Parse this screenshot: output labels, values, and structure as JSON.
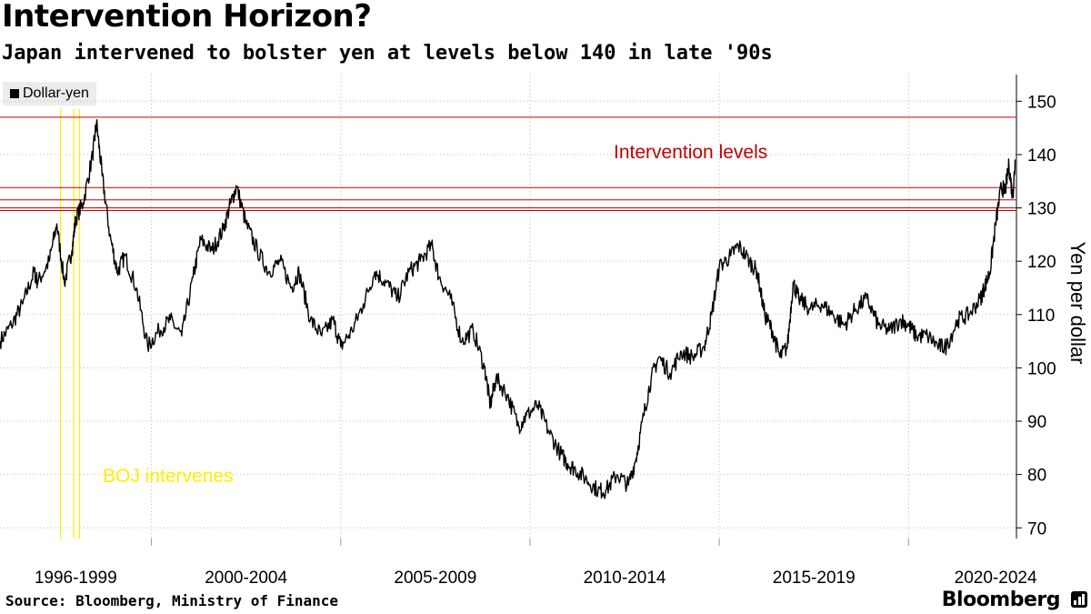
{
  "title": "Intervention Horizon?",
  "subtitle": "Japan intervened to bolster yen at levels below 140 in late '90s",
  "source": "Source: Bloomberg, Ministry of Finance",
  "brand": "Bloomberg",
  "legend": {
    "label": "Dollar-yen",
    "color": "#000000"
  },
  "colors": {
    "series": "#000000",
    "intervention": "#c00000",
    "boj": "#ffee00",
    "grid": "#bdbdbd"
  },
  "chart_data": {
    "type": "line",
    "title": "Intervention Horizon?",
    "ylabel": "Yen per dollar",
    "xlabel": "",
    "ylim": [
      68,
      155
    ],
    "xlim": [
      1996.0,
      2022.85
    ],
    "yticks": [
      70,
      80,
      90,
      100,
      110,
      120,
      130,
      140,
      150
    ],
    "x_group_labels": [
      {
        "label": "1996-1999",
        "center": 1998.0
      },
      {
        "label": "2000-2004",
        "center": 2002.5
      },
      {
        "label": "2005-2009",
        "center": 2007.5
      },
      {
        "label": "2010-2014",
        "center": 2012.5
      },
      {
        "label": "2015-2019",
        "center": 2017.5
      },
      {
        "label": "2020-2024",
        "center": 2022.5
      }
    ],
    "group_dividers": [
      2000.0,
      2005.0,
      2010.0,
      2015.0,
      2020.0
    ],
    "intervention_levels": [
      147.0,
      133.8,
      131.5,
      130.0,
      129.5
    ],
    "intervention_label": "Intervention levels",
    "boj_interventions": [
      1997.6,
      1997.95,
      1998.1
    ],
    "boj_label": "BOJ intervenes",
    "series": [
      {
        "name": "Dollar-yen",
        "x": [
          1996.0,
          1996.3,
          1996.6,
          1996.9,
          1997.0,
          1997.3,
          1997.5,
          1997.7,
          1997.9,
          1998.0,
          1998.2,
          1998.45,
          1998.55,
          1998.7,
          1998.9,
          1999.1,
          1999.3,
          1999.6,
          1999.9,
          2000.2,
          2000.5,
          2000.8,
          2001.1,
          2001.3,
          2001.6,
          2001.9,
          2002.1,
          2002.25,
          2002.5,
          2002.8,
          2003.1,
          2003.4,
          2003.7,
          2003.9,
          2004.2,
          2004.5,
          2004.8,
          2005.0,
          2005.3,
          2005.6,
          2005.9,
          2006.2,
          2006.5,
          2006.8,
          2007.1,
          2007.4,
          2007.6,
          2007.9,
          2008.2,
          2008.5,
          2008.8,
          2008.95,
          2009.1,
          2009.4,
          2009.7,
          2009.9,
          2010.2,
          2010.5,
          2010.8,
          2011.0,
          2011.2,
          2011.5,
          2011.8,
          2012.0,
          2012.3,
          2012.6,
          2012.8,
          2013.0,
          2013.2,
          2013.4,
          2013.7,
          2014.0,
          2014.3,
          2014.6,
          2014.8,
          2015.0,
          2015.3,
          2015.5,
          2015.8,
          2016.0,
          2016.2,
          2016.4,
          2016.6,
          2016.8,
          2016.95,
          2017.1,
          2017.4,
          2017.7,
          2018.0,
          2018.3,
          2018.6,
          2018.9,
          2019.2,
          2019.5,
          2019.8,
          2020.0,
          2020.2,
          2020.5,
          2020.8,
          2021.0,
          2021.3,
          2021.6,
          2021.9,
          2022.0,
          2022.15,
          2022.3,
          2022.45,
          2022.55,
          2022.65,
          2022.75,
          2022.82
        ],
        "values": [
          105,
          108,
          112,
          118,
          116,
          120,
          127,
          116,
          122,
          128,
          131,
          140,
          146,
          136,
          125,
          118,
          121,
          115,
          104,
          107,
          109,
          106,
          117,
          124,
          122,
          126,
          131,
          134,
          127,
          122,
          118,
          120,
          115,
          118,
          109,
          106,
          109,
          104,
          107,
          112,
          118,
          116,
          113,
          118,
          120,
          123,
          117,
          113,
          105,
          107,
          100,
          93,
          98,
          95,
          89,
          91,
          93,
          88,
          84,
          82,
          81,
          79,
          77,
          77,
          80,
          78,
          83,
          91,
          98,
          102,
          99,
          103,
          102,
          104,
          110,
          119,
          121,
          123,
          120,
          118,
          110,
          107,
          102,
          104,
          116,
          113,
          111,
          112,
          110,
          108,
          111,
          113,
          108,
          107,
          109,
          108,
          106,
          106,
          104,
          104,
          109,
          110,
          113,
          115,
          118,
          127,
          134,
          133,
          138,
          132,
          139
        ]
      }
    ]
  }
}
